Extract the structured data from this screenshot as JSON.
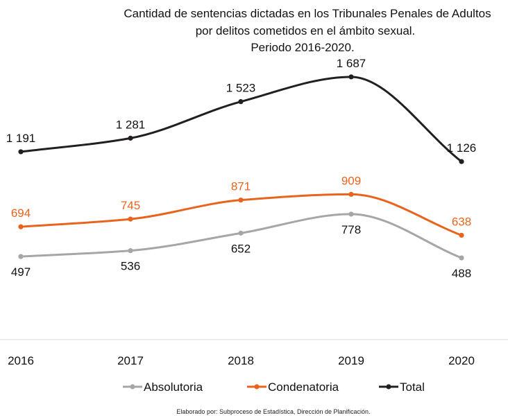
{
  "chart_data": {
    "type": "line",
    "title_lines": [
      "Cantidad de sentencias dictadas en los Tribunales Penales de Adultos",
      "por delitos cometidos en el ámbito sexual.",
      "Periodo 2016-2020."
    ],
    "categories": [
      "2016",
      "2017",
      "2018",
      "2019",
      "2020"
    ],
    "series": [
      {
        "name": "Absolutoria",
        "values": [
          497,
          536,
          652,
          778,
          488
        ],
        "labels": [
          "497",
          "536",
          "652",
          "778",
          "488"
        ],
        "color": "#a6a6a6",
        "label_color": "#111111",
        "label_position": "below"
      },
      {
        "name": "Condenatoria",
        "values": [
          694,
          745,
          871,
          909,
          638
        ],
        "labels": [
          "694",
          "745",
          "871",
          "909",
          "638"
        ],
        "color": "#e8641e",
        "label_color": "#e8641e",
        "label_position": "above"
      },
      {
        "name": "Total",
        "values": [
          1191,
          1281,
          1523,
          1687,
          1126
        ],
        "labels": [
          "1 191",
          "1 281",
          "1 523",
          "1 687",
          "1 126"
        ],
        "color": "#231f20",
        "label_color": "#111111",
        "label_position": "above"
      }
    ],
    "xlabel": "",
    "ylabel": "",
    "ylim": [
      0,
      1800
    ],
    "grid": false,
    "smooth": true,
    "legend_position": "bottom",
    "footer": "Elaborado por: Subproceso de Estadística, Dirección de Planificación."
  }
}
